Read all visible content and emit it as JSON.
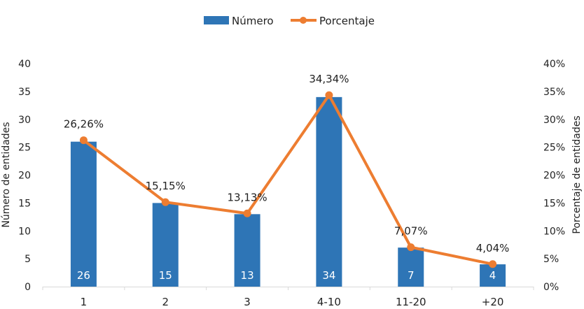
{
  "chart_data": {
    "type": "bar+line",
    "categories": [
      "1",
      "2",
      "3",
      "4-10",
      "11-20",
      "+20"
    ],
    "series": [
      {
        "name": "Número",
        "type": "bar",
        "axis": "left",
        "values": [
          26,
          15,
          13,
          34,
          7,
          4
        ],
        "data_labels": [
          "26",
          "15",
          "13",
          "34",
          "7",
          "4"
        ],
        "color": "#2e75b6"
      },
      {
        "name": "Porcentaje",
        "type": "line",
        "axis": "right",
        "values": [
          26.26,
          15.15,
          13.13,
          34.34,
          7.07,
          4.04
        ],
        "data_labels": [
          "26,26%",
          "15,15%",
          "13,13%",
          "34,34%",
          "7,07%",
          "4,04%"
        ],
        "color": "#ed7d31"
      }
    ],
    "ylabel": "Número de entidades",
    "y2label": "Porcentaje de entidades",
    "ylim": [
      0,
      40
    ],
    "y2lim": [
      0,
      40
    ],
    "yticks": [
      "0",
      "5",
      "10",
      "15",
      "20",
      "25",
      "30",
      "35",
      "40"
    ],
    "y2ticks": [
      "0%",
      "5%",
      "10%",
      "15%",
      "20%",
      "25%",
      "30%",
      "35%",
      "40%"
    ],
    "grid": false,
    "legend": "top"
  }
}
